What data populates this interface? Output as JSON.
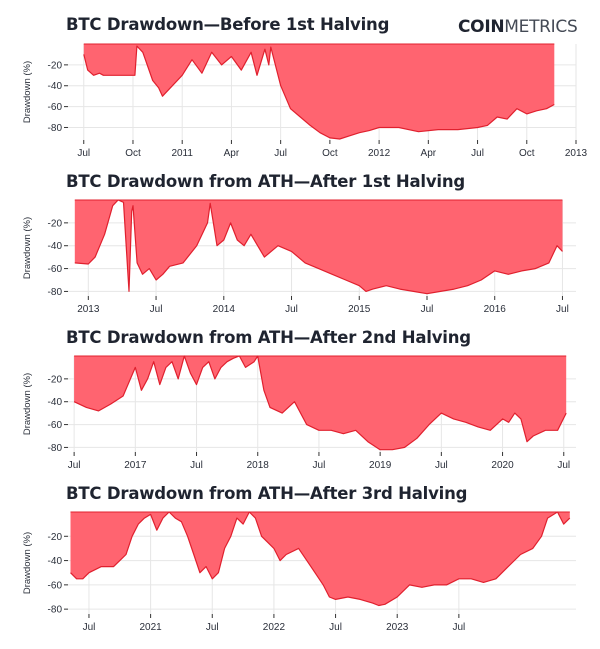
{
  "brand": {
    "bold": "COIN",
    "light": "METRICS"
  },
  "chart_data": [
    {
      "type": "area",
      "title": "BTC Drawdown—Before 1st Halving",
      "ylabel": "Drawdown (%)",
      "ylim": [
        -92,
        0
      ],
      "yticks": [
        -20,
        -40,
        -60,
        -80
      ],
      "ytick_labels": [
        "-20",
        "-40",
        "-60",
        "-80"
      ],
      "xlim": [
        2010.42,
        2013.0
      ],
      "xticks": [
        2010.5,
        2010.75,
        2011.0,
        2011.25,
        2011.5,
        2011.75,
        2012.0,
        2012.25,
        2012.5,
        2012.75,
        2013.0
      ],
      "xtick_labels": [
        "Jul",
        "Oct",
        "2011",
        "Apr",
        "Jul",
        "Oct",
        "2012",
        "Apr",
        "Jul",
        "Oct",
        "2013"
      ],
      "fill_color": "#ff6470",
      "line_color": "#e0202e",
      "x": [
        2010.5,
        2010.52,
        2010.55,
        2010.58,
        2010.6,
        2010.7,
        2010.76,
        2010.77,
        2010.8,
        2010.85,
        2010.88,
        2010.9,
        2010.95,
        2011.0,
        2011.05,
        2011.1,
        2011.15,
        2011.2,
        2011.25,
        2011.3,
        2011.35,
        2011.38,
        2011.42,
        2011.44,
        2011.45,
        2011.48,
        2011.5,
        2011.55,
        2011.6,
        2011.65,
        2011.7,
        2011.75,
        2011.8,
        2011.85,
        2011.9,
        2011.95,
        2012.0,
        2012.1,
        2012.2,
        2012.3,
        2012.4,
        2012.5,
        2012.55,
        2012.6,
        2012.65,
        2012.7,
        2012.75,
        2012.8,
        2012.85,
        2012.89
      ],
      "y": [
        -10,
        -25,
        -30,
        -28,
        -30,
        -30,
        -30,
        -2,
        -8,
        -35,
        -42,
        -50,
        -40,
        -30,
        -15,
        -28,
        -8,
        -20,
        -12,
        -25,
        -8,
        -30,
        -5,
        -20,
        -3,
        -25,
        -40,
        -62,
        -70,
        -78,
        -85,
        -90,
        -91,
        -88,
        -85,
        -83,
        -80,
        -80,
        -84,
        -82,
        -82,
        -80,
        -78,
        -70,
        -72,
        -62,
        -67,
        -64,
        -62,
        -58
      ]
    },
    {
      "type": "area",
      "title": "BTC Drawdown from ATH—After 1st Halving",
      "ylabel": "Drawdown (%)",
      "ylim": [
        -84,
        0
      ],
      "yticks": [
        -20,
        -40,
        -60,
        -80
      ],
      "ytick_labels": [
        "-20",
        "-40",
        "-60",
        "-80"
      ],
      "xlim": [
        2012.85,
        2016.6
      ],
      "xticks": [
        2013.0,
        2013.5,
        2014.0,
        2014.5,
        2015.0,
        2015.5,
        2016.0,
        2016.5
      ],
      "xtick_labels": [
        "2013",
        "Jul",
        "2014",
        "Jul",
        "2015",
        "Jul",
        "2016",
        "Jul"
      ],
      "fill_color": "#ff6470",
      "line_color": "#e0202e",
      "x": [
        2012.9,
        2013.0,
        2013.05,
        2013.12,
        2013.18,
        2013.22,
        2013.26,
        2013.3,
        2013.32,
        2013.33,
        2013.36,
        2013.4,
        2013.45,
        2013.5,
        2013.55,
        2013.6,
        2013.7,
        2013.8,
        2013.88,
        2013.9,
        2013.93,
        2013.95,
        2014.0,
        2014.05,
        2014.1,
        2014.15,
        2014.2,
        2014.3,
        2014.4,
        2014.5,
        2014.6,
        2014.7,
        2014.8,
        2014.9,
        2015.0,
        2015.05,
        2015.1,
        2015.2,
        2015.3,
        2015.4,
        2015.5,
        2015.6,
        2015.7,
        2015.8,
        2015.9,
        2016.0,
        2016.1,
        2016.2,
        2016.3,
        2016.4,
        2016.46,
        2016.5
      ],
      "y": [
        -55,
        -56,
        -50,
        -30,
        -5,
        0,
        -2,
        -80,
        -10,
        -5,
        -55,
        -65,
        -60,
        -70,
        -65,
        -58,
        -55,
        -40,
        -20,
        -3,
        -25,
        -40,
        -35,
        -20,
        -35,
        -40,
        -30,
        -50,
        -40,
        -45,
        -55,
        -60,
        -65,
        -70,
        -75,
        -80,
        -78,
        -75,
        -78,
        -80,
        -82,
        -80,
        -78,
        -75,
        -70,
        -62,
        -65,
        -62,
        -60,
        -55,
        -40,
        -45
      ]
    },
    {
      "type": "area",
      "title": "BTC Drawdown from ATH—After 2nd Halving",
      "ylabel": "Drawdown (%)",
      "ylim": [
        -84,
        0
      ],
      "yticks": [
        -20,
        -40,
        -60,
        -80
      ],
      "ytick_labels": [
        "-20",
        "-40",
        "-60",
        "-80"
      ],
      "xlim": [
        2016.45,
        2020.6
      ],
      "xticks": [
        2016.5,
        2017.0,
        2017.5,
        2018.0,
        2018.5,
        2019.0,
        2019.5,
        2020.0,
        2020.5
      ],
      "xtick_labels": [
        "Jul",
        "2017",
        "Jul",
        "2018",
        "Jul",
        "2019",
        "Jul",
        "2020",
        "Jul"
      ],
      "fill_color": "#ff6470",
      "line_color": "#e0202e",
      "x": [
        2016.5,
        2016.6,
        2016.7,
        2016.8,
        2016.9,
        2017.0,
        2017.05,
        2017.1,
        2017.15,
        2017.2,
        2017.25,
        2017.3,
        2017.35,
        2017.4,
        2017.45,
        2017.5,
        2017.55,
        2017.6,
        2017.65,
        2017.7,
        2017.75,
        2017.8,
        2017.85,
        2017.9,
        2017.97,
        2018.0,
        2018.05,
        2018.1,
        2018.2,
        2018.3,
        2018.4,
        2018.5,
        2018.6,
        2018.7,
        2018.8,
        2018.9,
        2019.0,
        2019.1,
        2019.2,
        2019.3,
        2019.4,
        2019.5,
        2019.6,
        2019.7,
        2019.8,
        2019.9,
        2020.0,
        2020.05,
        2020.1,
        2020.15,
        2020.2,
        2020.25,
        2020.35,
        2020.45,
        2020.52
      ],
      "y": [
        -40,
        -45,
        -48,
        -42,
        -35,
        -10,
        -30,
        -20,
        -5,
        -25,
        -10,
        -5,
        -20,
        0,
        -15,
        -25,
        -10,
        -5,
        -20,
        -10,
        -5,
        -2,
        0,
        -10,
        -5,
        0,
        -30,
        -45,
        -50,
        -40,
        -60,
        -65,
        -65,
        -68,
        -65,
        -75,
        -82,
        -82,
        -80,
        -72,
        -60,
        -50,
        -55,
        -58,
        -62,
        -65,
        -55,
        -58,
        -50,
        -55,
        -75,
        -70,
        -65,
        -65,
        -50
      ]
    },
    {
      "type": "area",
      "title": "BTC Drawdown from ATH—After 3rd Halving",
      "ylabel": "Drawdown (%)",
      "ylim": [
        -84,
        0
      ],
      "yticks": [
        -20,
        -40,
        -60,
        -80
      ],
      "ytick_labels": [
        "-20",
        "-40",
        "-60",
        "-80"
      ],
      "xlim": [
        2020.33,
        2024.45
      ],
      "xticks": [
        2020.5,
        2021.0,
        2021.5,
        2022.0,
        2022.5,
        2023.0,
        2023.5
      ],
      "xtick_labels": [
        "Jul",
        "2021",
        "Jul",
        "2022",
        "Jul",
        "2023",
        "Jul"
      ],
      "fill_color": "#ff6470",
      "line_color": "#e0202e",
      "x": [
        2020.35,
        2020.4,
        2020.45,
        2020.5,
        2020.6,
        2020.7,
        2020.75,
        2020.8,
        2020.85,
        2020.9,
        2020.95,
        2021.0,
        2021.05,
        2021.1,
        2021.15,
        2021.2,
        2021.25,
        2021.3,
        2021.35,
        2021.4,
        2021.45,
        2021.5,
        2021.55,
        2021.6,
        2021.65,
        2021.7,
        2021.75,
        2021.8,
        2021.85,
        2021.9,
        2022.0,
        2022.05,
        2022.1,
        2022.2,
        2022.3,
        2022.4,
        2022.45,
        2022.5,
        2022.6,
        2022.7,
        2022.8,
        2022.85,
        2022.9,
        2023.0,
        2023.1,
        2023.2,
        2023.3,
        2023.4,
        2023.5,
        2023.6,
        2023.7,
        2023.8,
        2023.9,
        2024.0,
        2024.1,
        2024.17,
        2024.22,
        2024.3,
        2024.35,
        2024.4
      ],
      "y": [
        -50,
        -55,
        -55,
        -50,
        -45,
        -45,
        -40,
        -35,
        -20,
        -10,
        -5,
        -2,
        -15,
        -5,
        0,
        -5,
        -8,
        -20,
        -35,
        -50,
        -45,
        -55,
        -50,
        -30,
        -20,
        -5,
        -10,
        0,
        -5,
        -20,
        -30,
        -40,
        -35,
        -30,
        -45,
        -60,
        -70,
        -72,
        -70,
        -72,
        -75,
        -77,
        -76,
        -70,
        -60,
        -62,
        -60,
        -60,
        -55,
        -55,
        -58,
        -55,
        -45,
        -35,
        -30,
        -20,
        -5,
        0,
        -10,
        -5
      ]
    }
  ]
}
